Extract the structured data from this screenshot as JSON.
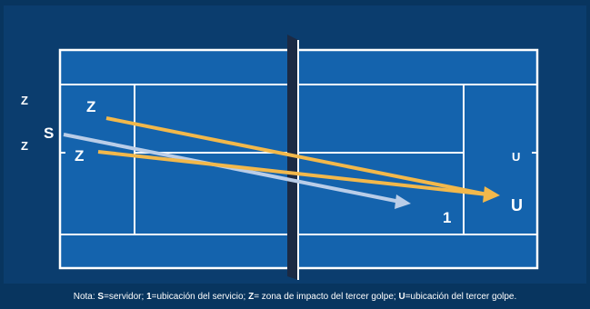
{
  "labels": {
    "z_outer_top": "Z",
    "z_outer_bottom": "Z",
    "s": "S",
    "z_inner_top": "Z",
    "z_inner_bottom": "Z",
    "u_small": "U",
    "u_big": "U",
    "one": "1"
  },
  "note": {
    "prefix": "Nota: ",
    "s_key": "S",
    "s_text": "=servidor; ",
    "one_key": "1",
    "one_text": "=ubicación del servicio; ",
    "z_key": "Z",
    "z_text": "= zona de impacto del tercer golpe; ",
    "u_key": "U",
    "u_text": "=ubicación del tercer golpe."
  },
  "colors": {
    "background": "#0b3d6e",
    "court": "#1463ad",
    "lines": "#ffffff",
    "net": "#1b2a44",
    "yellow_arrow": "#f2b84b",
    "serve_arrow": "#b9cde8"
  },
  "icons": {
    "arrow_head": "triangle"
  }
}
